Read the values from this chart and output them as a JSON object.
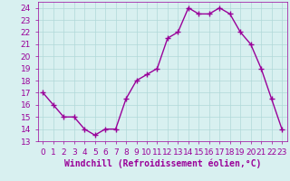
{
  "x": [
    0,
    1,
    2,
    3,
    4,
    5,
    6,
    7,
    8,
    9,
    10,
    11,
    12,
    13,
    14,
    15,
    16,
    17,
    18,
    19,
    20,
    21,
    22,
    23
  ],
  "y": [
    17.0,
    16.0,
    15.0,
    15.0,
    14.0,
    13.5,
    14.0,
    14.0,
    16.5,
    18.0,
    18.5,
    19.0,
    21.5,
    22.0,
    24.0,
    23.5,
    23.5,
    24.0,
    23.5,
    22.0,
    21.0,
    19.0,
    16.5,
    14.0
  ],
  "line_color": "#990099",
  "marker": "+",
  "marker_size": 4,
  "linewidth": 1.0,
  "markeredgewidth": 1.0,
  "xlabel": "Windchill (Refroidissement éolien,°C)",
  "xlabel_fontsize": 7,
  "ylim": [
    13,
    24.5
  ],
  "xlim": [
    -0.5,
    23.5
  ],
  "yticks": [
    13,
    14,
    15,
    16,
    17,
    18,
    19,
    20,
    21,
    22,
    23,
    24
  ],
  "xtick_labels": [
    "0",
    "1",
    "2",
    "3",
    "4",
    "5",
    "6",
    "7",
    "8",
    "9",
    "10",
    "11",
    "12",
    "13",
    "14",
    "15",
    "16",
    "17",
    "18",
    "19",
    "20",
    "21",
    "22",
    "23"
  ],
  "background_color": "#d8f0f0",
  "grid_color": "#b0d8d8",
  "tick_fontsize": 6.5
}
